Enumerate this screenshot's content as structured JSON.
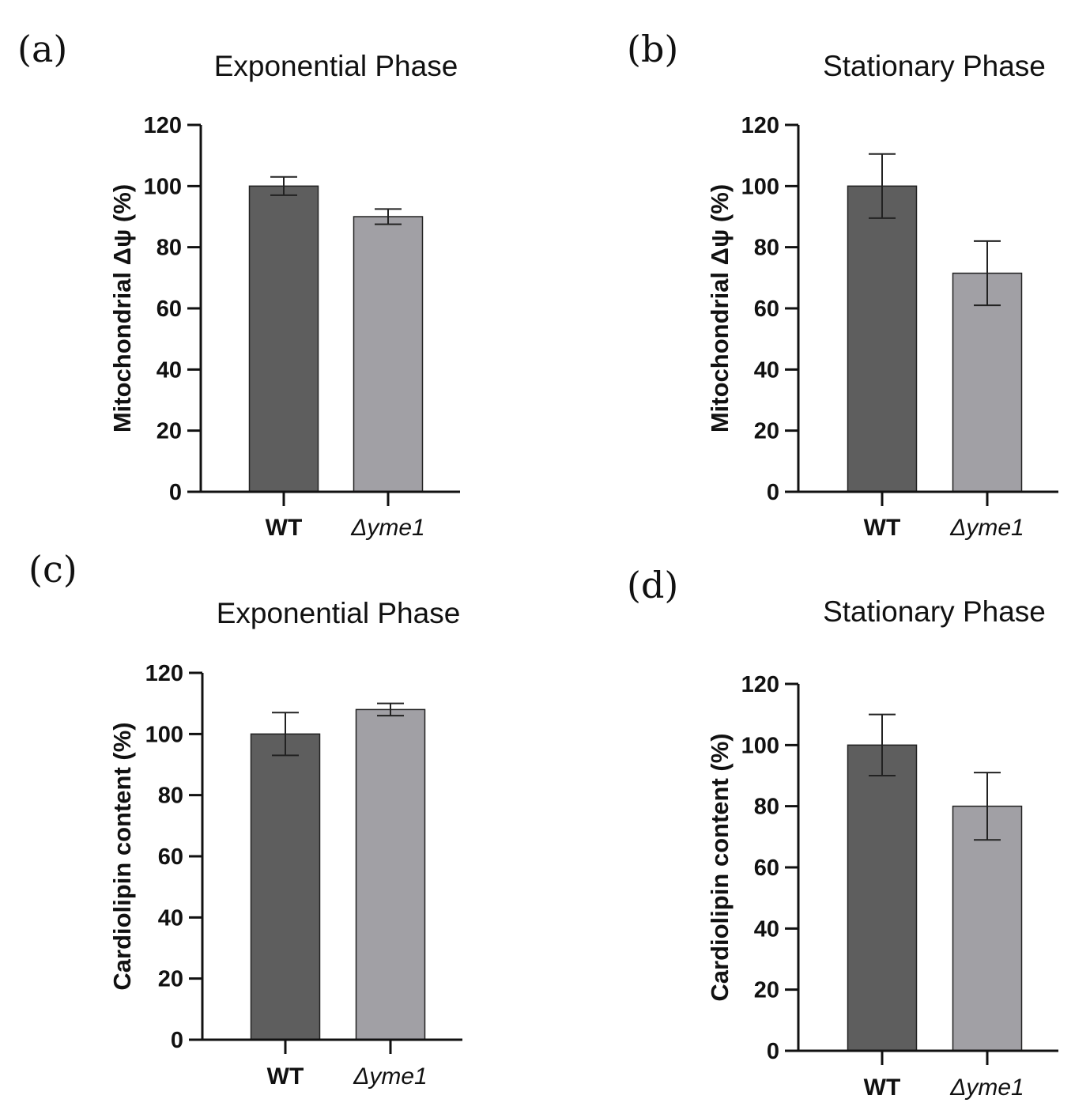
{
  "chart_data": [
    {
      "id": "a",
      "type": "bar",
      "panel_label": "(a)",
      "title": "Exponential Phase",
      "ylabel": "Mitochondrial Δψ (%)",
      "categories": [
        "WT",
        "Δyme1"
      ],
      "values": [
        100,
        90
      ],
      "errors": [
        3,
        2.5
      ],
      "colors": [
        "#5e5e5e",
        "#a1a0a5"
      ],
      "ylim": [
        0,
        120
      ],
      "yticks": [
        0,
        20,
        40,
        60,
        80,
        100,
        120
      ]
    },
    {
      "id": "b",
      "type": "bar",
      "panel_label": "(b)",
      "title": "Stationary Phase",
      "ylabel": "Mitochondrial Δψ (%)",
      "categories": [
        "WT",
        "Δyme1"
      ],
      "values": [
        100,
        71.5
      ],
      "errors": [
        10.5,
        10.5
      ],
      "colors": [
        "#5e5e5e",
        "#a1a0a5"
      ],
      "ylim": [
        0,
        120
      ],
      "yticks": [
        0,
        20,
        40,
        60,
        80,
        100,
        120
      ]
    },
    {
      "id": "c",
      "type": "bar",
      "panel_label": "(c)",
      "title": "Exponential Phase",
      "ylabel": "Cardiolipin content (%)",
      "categories": [
        "WT",
        "Δyme1"
      ],
      "values": [
        100,
        108
      ],
      "errors": [
        7,
        2
      ],
      "colors": [
        "#5e5e5e",
        "#a1a0a5"
      ],
      "ylim": [
        0,
        120
      ],
      "yticks": [
        0,
        20,
        40,
        60,
        80,
        100,
        120
      ]
    },
    {
      "id": "d",
      "type": "bar",
      "panel_label": "(d)",
      "title": "Stationary Phase",
      "ylabel": "Cardiolipin content (%)",
      "categories": [
        "WT",
        "Δyme1"
      ],
      "values": [
        100,
        80
      ],
      "errors": [
        10,
        11
      ],
      "colors": [
        "#5e5e5e",
        "#a1a0a5"
      ],
      "ylim": [
        0,
        120
      ],
      "yticks": [
        0,
        20,
        40,
        60,
        80,
        100,
        120
      ]
    }
  ]
}
